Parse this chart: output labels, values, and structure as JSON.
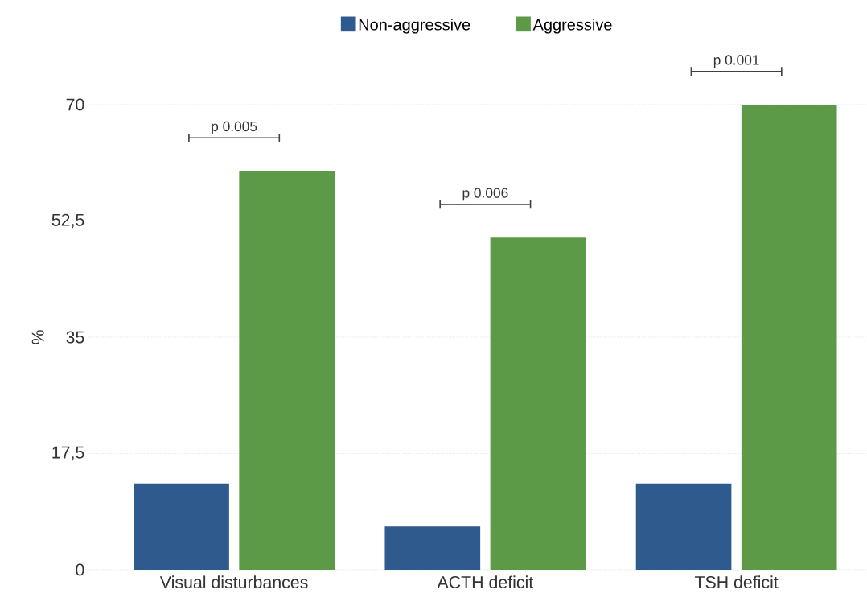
{
  "chart_data": {
    "type": "bar",
    "ylabel": "%",
    "categories": [
      "Visual disturbances",
      "ACTH deficit",
      "TSH deficit"
    ],
    "series": [
      {
        "name": "Non-aggressive",
        "color": "#2e5a8e",
        "values": [
          13,
          6.5,
          13
        ]
      },
      {
        "name": "Aggressive",
        "color": "#5c9a48",
        "values": [
          60,
          50,
          70
        ]
      }
    ],
    "ylim": [
      0,
      70
    ],
    "yticks": [
      0,
      {
        "value": 17.5,
        "label": "17,5"
      },
      35,
      {
        "value": 52.5,
        "label": "52,5"
      },
      70
    ],
    "grid": "y",
    "legend": "top",
    "annotations": [
      "p 0.005",
      "p 0.006",
      "p 0.001"
    ]
  }
}
